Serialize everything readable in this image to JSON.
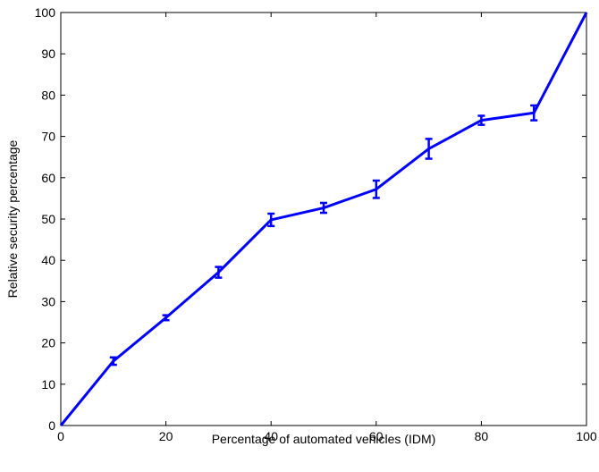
{
  "chart_data": {
    "type": "line",
    "title": "",
    "xlabel": "Percentage of automated vehicles (IDM)",
    "ylabel": "Relative security percentage",
    "xlim": [
      0,
      100
    ],
    "ylim": [
      0,
      100
    ],
    "xticks": [
      0,
      20,
      40,
      60,
      80,
      100
    ],
    "yticks": [
      0,
      10,
      20,
      30,
      40,
      50,
      60,
      70,
      80,
      90,
      100
    ],
    "grid": false,
    "legend": "none",
    "series": [
      {
        "color": "#0000ff",
        "x": [
          0,
          10,
          20,
          30,
          40,
          50,
          60,
          70,
          80,
          90,
          100
        ],
        "y": [
          0,
          15.6,
          26.1,
          37.1,
          49.8,
          52.7,
          57.2,
          67.0,
          73.9,
          75.7,
          100
        ],
        "error": [
          0,
          0.9,
          0.6,
          1.3,
          1.5,
          1.2,
          2.1,
          2.4,
          1.1,
          1.8,
          0
        ]
      }
    ]
  }
}
